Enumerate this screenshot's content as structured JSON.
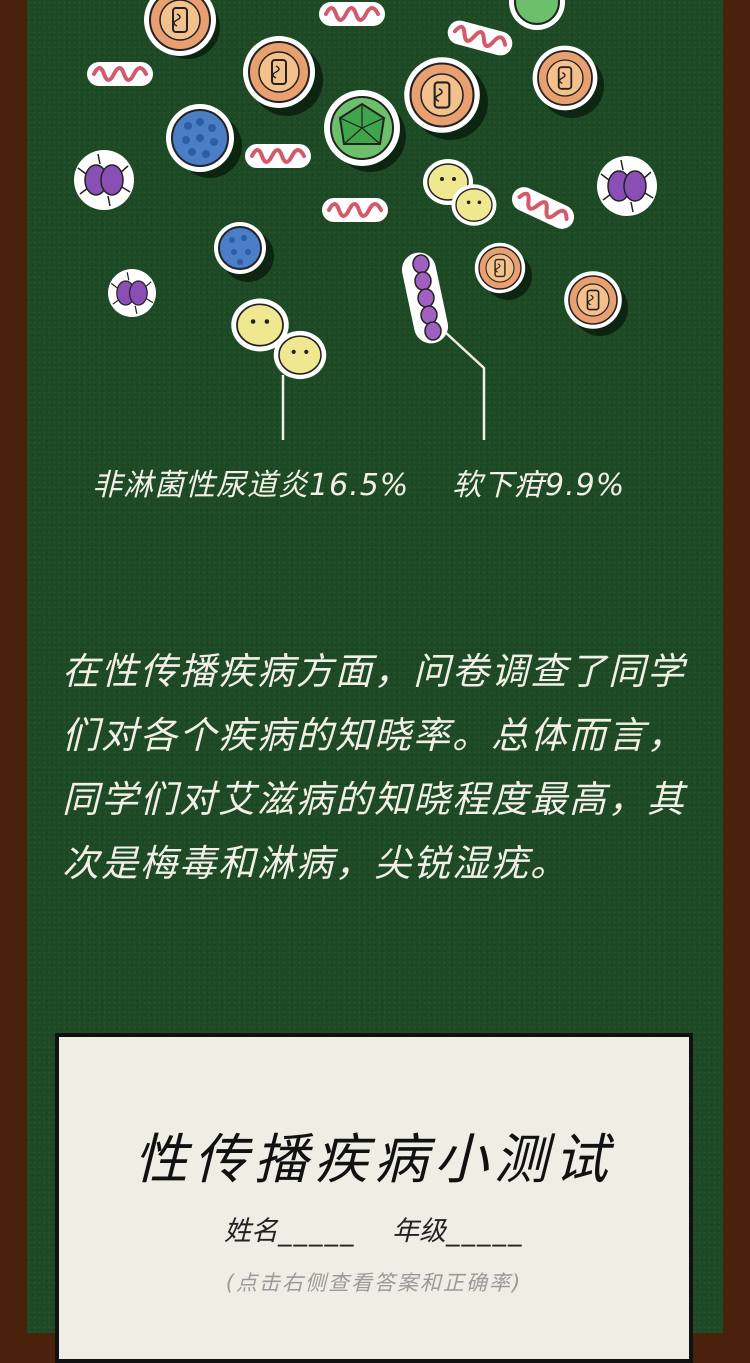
{
  "stats": [
    {
      "label": "非淋菌性尿道炎16.5%"
    },
    {
      "label": "软下疳9.9%"
    }
  ],
  "paragraph": "在性传播疾病方面，问卷调查了同学们对各个疾病的知晓率。总体而言，同学们对艾滋病的知晓程度最高，其次是梅毒和淋病，尖锐湿疣。",
  "quiz": {
    "title": "性传播疾病小测试",
    "name_label": "姓名",
    "name_blank": "_____",
    "grade_label": "年级",
    "grade_blank": "_____",
    "hint": "(点击右侧查看答案和正确率)"
  },
  "colors": {
    "board": "#1d4a25",
    "frame": "#4a220c",
    "card": "#efeee4",
    "text": "#f2f0e6"
  },
  "icons": [
    "virus-orange-icon",
    "virus-green-icon",
    "bacteria-blue-icon",
    "bacteria-purple-icon",
    "bacteria-yellow-icon",
    "spirochete-pink-icon",
    "chain-purple-icon"
  ]
}
